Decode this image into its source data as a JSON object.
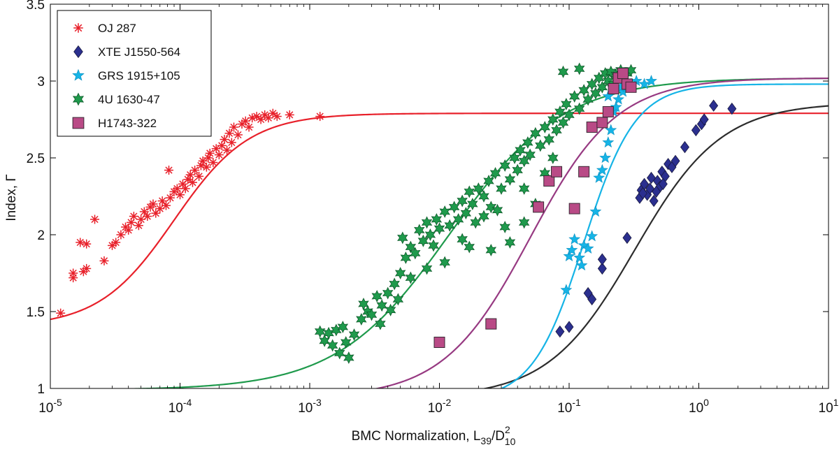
{
  "chart_data": {
    "type": "scatter",
    "title": "",
    "xlabel": "BMC Normalization, L₃₉/D²₁₀",
    "xlabel_parts": {
      "main": "BMC Normalization, L",
      "sub1": "39",
      "slash": "/D",
      "sup": "2",
      "sub2": "10"
    },
    "ylabel": "Index, Γ",
    "xscale": "log",
    "xlim": [
      1e-05,
      10
    ],
    "ylim": [
      1,
      3.5
    ],
    "x_ticks": [
      {
        "value": 1e-05,
        "base": "10",
        "exp": "-5"
      },
      {
        "value": 0.0001,
        "base": "10",
        "exp": "-4"
      },
      {
        "value": 0.001,
        "base": "10",
        "exp": "-3"
      },
      {
        "value": 0.01,
        "base": "10",
        "exp": "-2"
      },
      {
        "value": 0.1,
        "base": "10",
        "exp": "-1"
      },
      {
        "value": 1,
        "base": "10",
        "exp": "0"
      },
      {
        "value": 10,
        "base": "10",
        "exp": "1"
      }
    ],
    "y_ticks": [
      {
        "value": 1,
        "label": "1"
      },
      {
        "value": 1.5,
        "label": "1.5"
      },
      {
        "value": 2,
        "label": "2"
      },
      {
        "value": 2.5,
        "label": "2.5"
      },
      {
        "value": 3,
        "label": "3"
      },
      {
        "value": 3.5,
        "label": "3.5"
      }
    ],
    "legend_position": "top-left",
    "series": [
      {
        "name": "OJ 287",
        "marker": "asterisk",
        "color": "#e8202a",
        "points": [
          [
            1.2e-05,
            1.49
          ],
          [
            1.5e-05,
            1.72
          ],
          [
            1.5e-05,
            1.75
          ],
          [
            1.7e-05,
            1.95
          ],
          [
            1.8e-05,
            1.76
          ],
          [
            1.9e-05,
            1.94
          ],
          [
            1.9e-05,
            1.78
          ],
          [
            2.2e-05,
            2.1
          ],
          [
            2.6e-05,
            1.83
          ],
          [
            3e-05,
            1.93
          ],
          [
            3.2e-05,
            1.95
          ],
          [
            3.5e-05,
            2.0
          ],
          [
            3.8e-05,
            2.05
          ],
          [
            4e-05,
            2.03
          ],
          [
            4.2e-05,
            2.08
          ],
          [
            4.4e-05,
            2.12
          ],
          [
            4.8e-05,
            2.06
          ],
          [
            5e-05,
            2.1
          ],
          [
            5.3e-05,
            2.15
          ],
          [
            5.6e-05,
            2.12
          ],
          [
            5.9e-05,
            2.18
          ],
          [
            6.2e-05,
            2.2
          ],
          [
            6.5e-05,
            2.14
          ],
          [
            7e-05,
            2.17
          ],
          [
            7.3e-05,
            2.22
          ],
          [
            7.8e-05,
            2.19
          ],
          [
            8.2e-05,
            2.42
          ],
          [
            8.4e-05,
            2.24
          ],
          [
            9e-05,
            2.28
          ],
          [
            9.5e-05,
            2.3
          ],
          [
            0.0001,
            2.26
          ],
          [
            0.000105,
            2.33
          ],
          [
            0.00011,
            2.3
          ],
          [
            0.000115,
            2.36
          ],
          [
            0.00012,
            2.39
          ],
          [
            0.000125,
            2.34
          ],
          [
            0.00013,
            2.42
          ],
          [
            0.00014,
            2.38
          ],
          [
            0.000145,
            2.45
          ],
          [
            0.00015,
            2.48
          ],
          [
            0.00016,
            2.44
          ],
          [
            0.000165,
            2.5
          ],
          [
            0.00017,
            2.53
          ],
          [
            0.00018,
            2.47
          ],
          [
            0.00019,
            2.56
          ],
          [
            0.0002,
            2.52
          ],
          [
            0.00021,
            2.58
          ],
          [
            0.00022,
            2.62
          ],
          [
            0.00023,
            2.55
          ],
          [
            0.00024,
            2.66
          ],
          [
            0.00025,
            2.6
          ],
          [
            0.00026,
            2.7
          ],
          [
            0.00028,
            2.65
          ],
          [
            0.0003,
            2.72
          ],
          [
            0.00032,
            2.74
          ],
          [
            0.00034,
            2.7
          ],
          [
            0.00036,
            2.76
          ],
          [
            0.00039,
            2.77
          ],
          [
            0.00042,
            2.75
          ],
          [
            0.00045,
            2.78
          ],
          [
            0.00048,
            2.76
          ],
          [
            0.00052,
            2.79
          ],
          [
            0.00056,
            2.77
          ],
          [
            0.0007,
            2.78
          ],
          [
            0.0012,
            2.77
          ]
        ]
      },
      {
        "name": "XTE J1550-564",
        "marker": "diamond",
        "color": "#2b2f8f",
        "points": [
          [
            0.085,
            1.37
          ],
          [
            0.1,
            1.4
          ],
          [
            0.14,
            1.62
          ],
          [
            0.15,
            1.58
          ],
          [
            0.18,
            1.78
          ],
          [
            0.18,
            1.84
          ],
          [
            0.28,
            1.98
          ],
          [
            0.35,
            2.24
          ],
          [
            0.36,
            2.29
          ],
          [
            0.38,
            2.33
          ],
          [
            0.4,
            2.26
          ],
          [
            0.42,
            2.3
          ],
          [
            0.45,
            2.22
          ],
          [
            0.48,
            2.35
          ],
          [
            0.5,
            2.31
          ],
          [
            0.52,
            2.41
          ],
          [
            0.55,
            2.38
          ],
          [
            0.58,
            2.46
          ],
          [
            0.62,
            2.44
          ],
          [
            0.78,
            2.57
          ],
          [
            0.95,
            2.68
          ],
          [
            1.05,
            2.72
          ],
          [
            1.1,
            2.75
          ],
          [
            1.3,
            2.84
          ],
          [
            1.8,
            2.82
          ],
          [
            0.37,
            2.27
          ],
          [
            0.43,
            2.37
          ],
          [
            0.47,
            2.28
          ],
          [
            0.53,
            2.33
          ],
          [
            0.66,
            2.48
          ]
        ]
      },
      {
        "name": "GRS 1915+105",
        "marker": "star5",
        "color": "#16b4e6",
        "points": [
          [
            0.095,
            1.64
          ],
          [
            0.1,
            1.86
          ],
          [
            0.105,
            1.9
          ],
          [
            0.11,
            1.97
          ],
          [
            0.12,
            1.85
          ],
          [
            0.125,
            1.8
          ],
          [
            0.13,
            1.93
          ],
          [
            0.14,
            1.91
          ],
          [
            0.15,
            1.99
          ],
          [
            0.16,
            2.15
          ],
          [
            0.17,
            2.37
          ],
          [
            0.18,
            2.42
          ],
          [
            0.19,
            2.5
          ],
          [
            0.2,
            2.6
          ],
          [
            0.21,
            2.68
          ],
          [
            0.22,
            2.8
          ],
          [
            0.24,
            2.88
          ],
          [
            0.26,
            2.93
          ],
          [
            0.28,
            2.97
          ],
          [
            0.3,
            2.98
          ],
          [
            0.33,
            3.0
          ],
          [
            0.38,
            2.98
          ],
          [
            0.43,
            3.0
          ],
          [
            0.2,
            2.9
          ],
          [
            0.25,
            2.96
          ],
          [
            0.23,
            2.83
          ]
        ]
      },
      {
        "name": "4U 1630-47",
        "marker": "star6",
        "color": "#1f9a4c",
        "points": [
          [
            0.0012,
            1.37
          ],
          [
            0.0013,
            1.31
          ],
          [
            0.0014,
            1.36
          ],
          [
            0.0015,
            1.28
          ],
          [
            0.0016,
            1.38
          ],
          [
            0.0017,
            1.23
          ],
          [
            0.0018,
            1.4
          ],
          [
            0.0019,
            1.3
          ],
          [
            0.002,
            1.2
          ],
          [
            0.0022,
            1.35
          ],
          [
            0.0025,
            1.45
          ],
          [
            0.0026,
            1.55
          ],
          [
            0.0028,
            1.5
          ],
          [
            0.003,
            1.48
          ],
          [
            0.0033,
            1.6
          ],
          [
            0.0036,
            1.54
          ],
          [
            0.004,
            1.62
          ],
          [
            0.0042,
            1.51
          ],
          [
            0.0045,
            1.68
          ],
          [
            0.0048,
            1.58
          ],
          [
            0.005,
            1.75
          ],
          [
            0.0052,
            1.98
          ],
          [
            0.0055,
            1.85
          ],
          [
            0.006,
            1.92
          ],
          [
            0.0065,
            1.88
          ],
          [
            0.007,
            2.03
          ],
          [
            0.0075,
            1.96
          ],
          [
            0.008,
            2.08
          ],
          [
            0.0085,
            2.0
          ],
          [
            0.009,
            1.93
          ],
          [
            0.0095,
            2.1
          ],
          [
            0.01,
            2.04
          ],
          [
            0.011,
            2.15
          ],
          [
            0.012,
            2.06
          ],
          [
            0.013,
            2.18
          ],
          [
            0.014,
            2.1
          ],
          [
            0.015,
            2.22
          ],
          [
            0.016,
            2.14
          ],
          [
            0.017,
            2.28
          ],
          [
            0.018,
            2.2
          ],
          [
            0.019,
            2.08
          ],
          [
            0.02,
            2.3
          ],
          [
            0.022,
            2.25
          ],
          [
            0.024,
            2.35
          ],
          [
            0.025,
            2.18
          ],
          [
            0.027,
            2.4
          ],
          [
            0.03,
            2.3
          ],
          [
            0.032,
            2.45
          ],
          [
            0.035,
            2.36
          ],
          [
            0.038,
            2.5
          ],
          [
            0.04,
            2.42
          ],
          [
            0.042,
            2.55
          ],
          [
            0.045,
            2.48
          ],
          [
            0.048,
            2.6
          ],
          [
            0.05,
            2.52
          ],
          [
            0.055,
            2.66
          ],
          [
            0.06,
            2.58
          ],
          [
            0.065,
            2.7
          ],
          [
            0.07,
            2.62
          ],
          [
            0.075,
            2.75
          ],
          [
            0.08,
            2.68
          ],
          [
            0.085,
            2.8
          ],
          [
            0.09,
            2.73
          ],
          [
            0.095,
            2.85
          ],
          [
            0.1,
            2.78
          ],
          [
            0.11,
            2.9
          ],
          [
            0.12,
            2.82
          ],
          [
            0.13,
            2.94
          ],
          [
            0.14,
            2.88
          ],
          [
            0.15,
            2.98
          ],
          [
            0.16,
            2.92
          ],
          [
            0.17,
            3.02
          ],
          [
            0.18,
            2.96
          ],
          [
            0.19,
            3.05
          ],
          [
            0.2,
            3.0
          ],
          [
            0.21,
            3.06
          ],
          [
            0.22,
            2.98
          ],
          [
            0.23,
            3.04
          ],
          [
            0.25,
            3.07
          ],
          [
            0.28,
            3.05
          ],
          [
            0.3,
            3.07
          ],
          [
            0.12,
            3.08
          ],
          [
            0.09,
            3.06
          ],
          [
            0.015,
            1.97
          ],
          [
            0.017,
            1.92
          ],
          [
            0.022,
            2.12
          ],
          [
            0.028,
            2.16
          ],
          [
            0.006,
            1.72
          ],
          [
            0.0035,
            1.42
          ],
          [
            0.032,
            2.05
          ],
          [
            0.045,
            2.3
          ],
          [
            0.055,
            2.2
          ],
          [
            0.065,
            2.4
          ],
          [
            0.075,
            2.5
          ],
          [
            0.045,
            2.08
          ],
          [
            0.035,
            1.95
          ],
          [
            0.025,
            1.9
          ],
          [
            0.011,
            1.82
          ],
          [
            0.008,
            1.78
          ]
        ]
      },
      {
        "name": "H1743-322",
        "marker": "square",
        "color": "#b94a86",
        "points": [
          [
            0.01,
            1.3
          ],
          [
            0.025,
            1.42
          ],
          [
            0.058,
            2.18
          ],
          [
            0.07,
            2.35
          ],
          [
            0.08,
            2.41
          ],
          [
            0.11,
            2.17
          ],
          [
            0.13,
            2.41
          ],
          [
            0.15,
            2.7
          ],
          [
            0.18,
            2.73
          ],
          [
            0.2,
            2.8
          ],
          [
            0.22,
            2.95
          ],
          [
            0.24,
            3.02
          ],
          [
            0.26,
            3.05
          ],
          [
            0.28,
            2.98
          ],
          [
            0.3,
            2.96
          ]
        ]
      }
    ],
    "fit_curves": [
      {
        "name": "OJ 287 fit",
        "color": "#e8202a",
        "A": 1.4,
        "N": 2.79,
        "x_tr": 9e-05,
        "alpha": 1.5
      },
      {
        "name": "XTE J1550-564 fit",
        "color": "#2c2c2c",
        "A": 0.94,
        "N": 2.86,
        "x_tr": 0.32,
        "alpha": 1.3
      },
      {
        "name": "GRS 1915+105 fit",
        "color": "#16b4e6",
        "A": 0.92,
        "N": 2.98,
        "x_tr": 0.13,
        "alpha": 2.2
      },
      {
        "name": "4U 1630-47 fit",
        "color": "#1f9a4c",
        "A": 0.99,
        "N": 3.02,
        "x_tr": 0.012,
        "alpha": 1.0
      },
      {
        "name": "H1743-322 fit",
        "color": "#973a82",
        "A": 0.94,
        "N": 3.02,
        "x_tr": 0.05,
        "alpha": 1.3
      }
    ]
  }
}
